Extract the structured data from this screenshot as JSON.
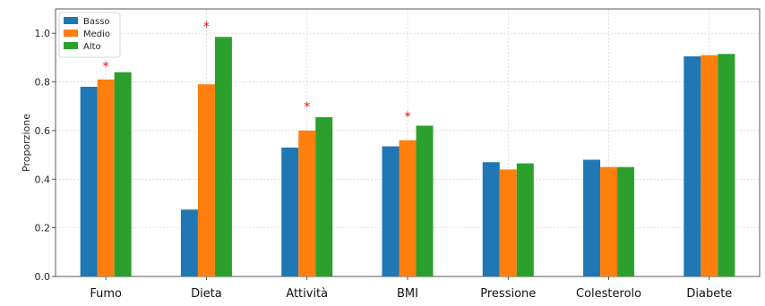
{
  "chart_data": {
    "type": "bar",
    "title": "",
    "xlabel": "",
    "ylabel": "Proporzione",
    "ylim": [
      0,
      1.1
    ],
    "yticks": [
      0.0,
      0.2,
      0.4,
      0.6,
      0.8,
      1.0
    ],
    "ytick_labels": [
      "0.0",
      "0.2",
      "0.4",
      "0.6",
      "0.8",
      "1.0"
    ],
    "categories": [
      "Fumo",
      "Dieta",
      "Attività",
      "BMI",
      "Pressione",
      "Colesterolo",
      "Diabete"
    ],
    "series": [
      {
        "name": "Basso",
        "color": "#1f77b4",
        "values": [
          0.78,
          0.275,
          0.53,
          0.535,
          0.47,
          0.48,
          0.905
        ]
      },
      {
        "name": "Medio",
        "color": "#ff7f0e",
        "values": [
          0.81,
          0.79,
          0.6,
          0.56,
          0.44,
          0.45,
          0.91
        ]
      },
      {
        "name": "Alto",
        "color": "#2ca02c",
        "values": [
          0.84,
          0.985,
          0.655,
          0.62,
          0.465,
          0.45,
          0.915
        ]
      }
    ],
    "significance": [
      {
        "category": "Fumo",
        "marker": "*",
        "y": 0.875
      },
      {
        "category": "Dieta",
        "marker": "*",
        "y": 1.04
      },
      {
        "category": "Attività",
        "marker": "*",
        "y": 0.71
      },
      {
        "category": "BMI",
        "marker": "*",
        "y": 0.67
      }
    ],
    "significance_color": "#ff0000",
    "legend_position": "top-left",
    "grid": true
  }
}
